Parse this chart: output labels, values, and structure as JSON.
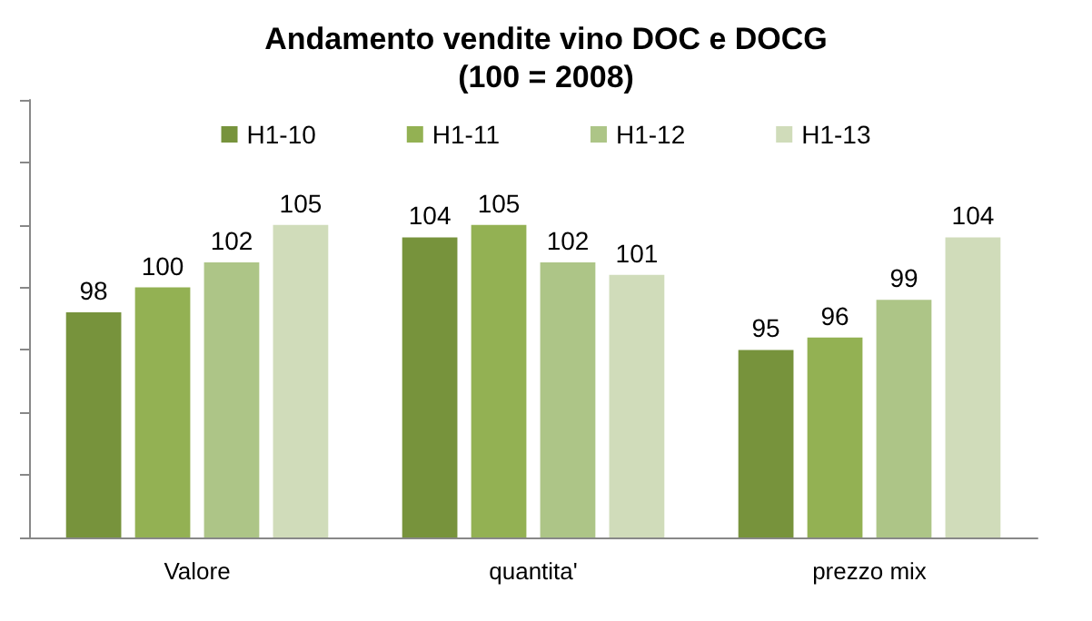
{
  "chart_data": {
    "type": "bar",
    "title": "Andamento vendite vino DOC e DOCG\n(100 = 2008)",
    "categories": [
      "Valore",
      "quantita'",
      "prezzo mix"
    ],
    "series": [
      {
        "name": "H1-10",
        "color": "#77933c",
        "values": [
          98,
          104,
          95
        ]
      },
      {
        "name": "H1-11",
        "color": "#93b153",
        "values": [
          100,
          105,
          96
        ]
      },
      {
        "name": "H1-12",
        "color": "#adc587",
        "values": [
          102,
          102,
          99
        ]
      },
      {
        "name": "H1-13",
        "color": "#d0dcba",
        "values": [
          105,
          101,
          104
        ]
      }
    ],
    "ylim": [
      80,
      115
    ],
    "yticks": [
      {
        "value": 80,
        "label": null
      },
      {
        "value": 85,
        "label": null
      },
      {
        "value": 90,
        "label": null
      },
      {
        "value": 95,
        "label": null
      },
      {
        "value": 100,
        "label": null
      },
      {
        "value": 105,
        "label": null
      },
      {
        "value": 110,
        "label": null
      },
      {
        "value": 115,
        "label": null
      }
    ],
    "tick_labels": "x",
    "data_labels": true,
    "legend": "top",
    "grid": false
  }
}
